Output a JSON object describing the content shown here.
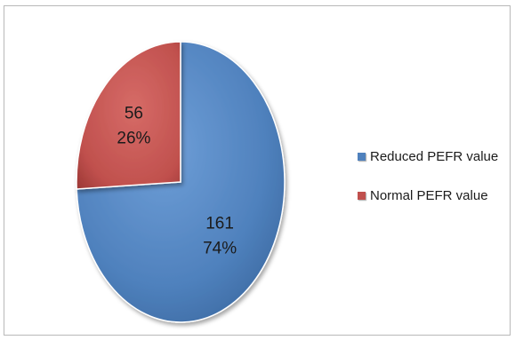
{
  "chart_data": {
    "type": "pie",
    "title": "",
    "categories": [
      "Reduced PEFR value",
      "Normal PEFR value"
    ],
    "values": [
      161,
      56
    ],
    "percentages": [
      "74%",
      "26%"
    ],
    "colors": [
      "#4f81bd",
      "#c0504d"
    ],
    "legend_position": "right",
    "data_labels": [
      {
        "value": "161",
        "percent": "74%"
      },
      {
        "value": "56",
        "percent": "26%"
      }
    ]
  },
  "legend": {
    "items": [
      {
        "label": "Reduced PEFR value",
        "color": "#4f81bd"
      },
      {
        "label": "Normal PEFR value",
        "color": "#c0504d"
      }
    ]
  }
}
